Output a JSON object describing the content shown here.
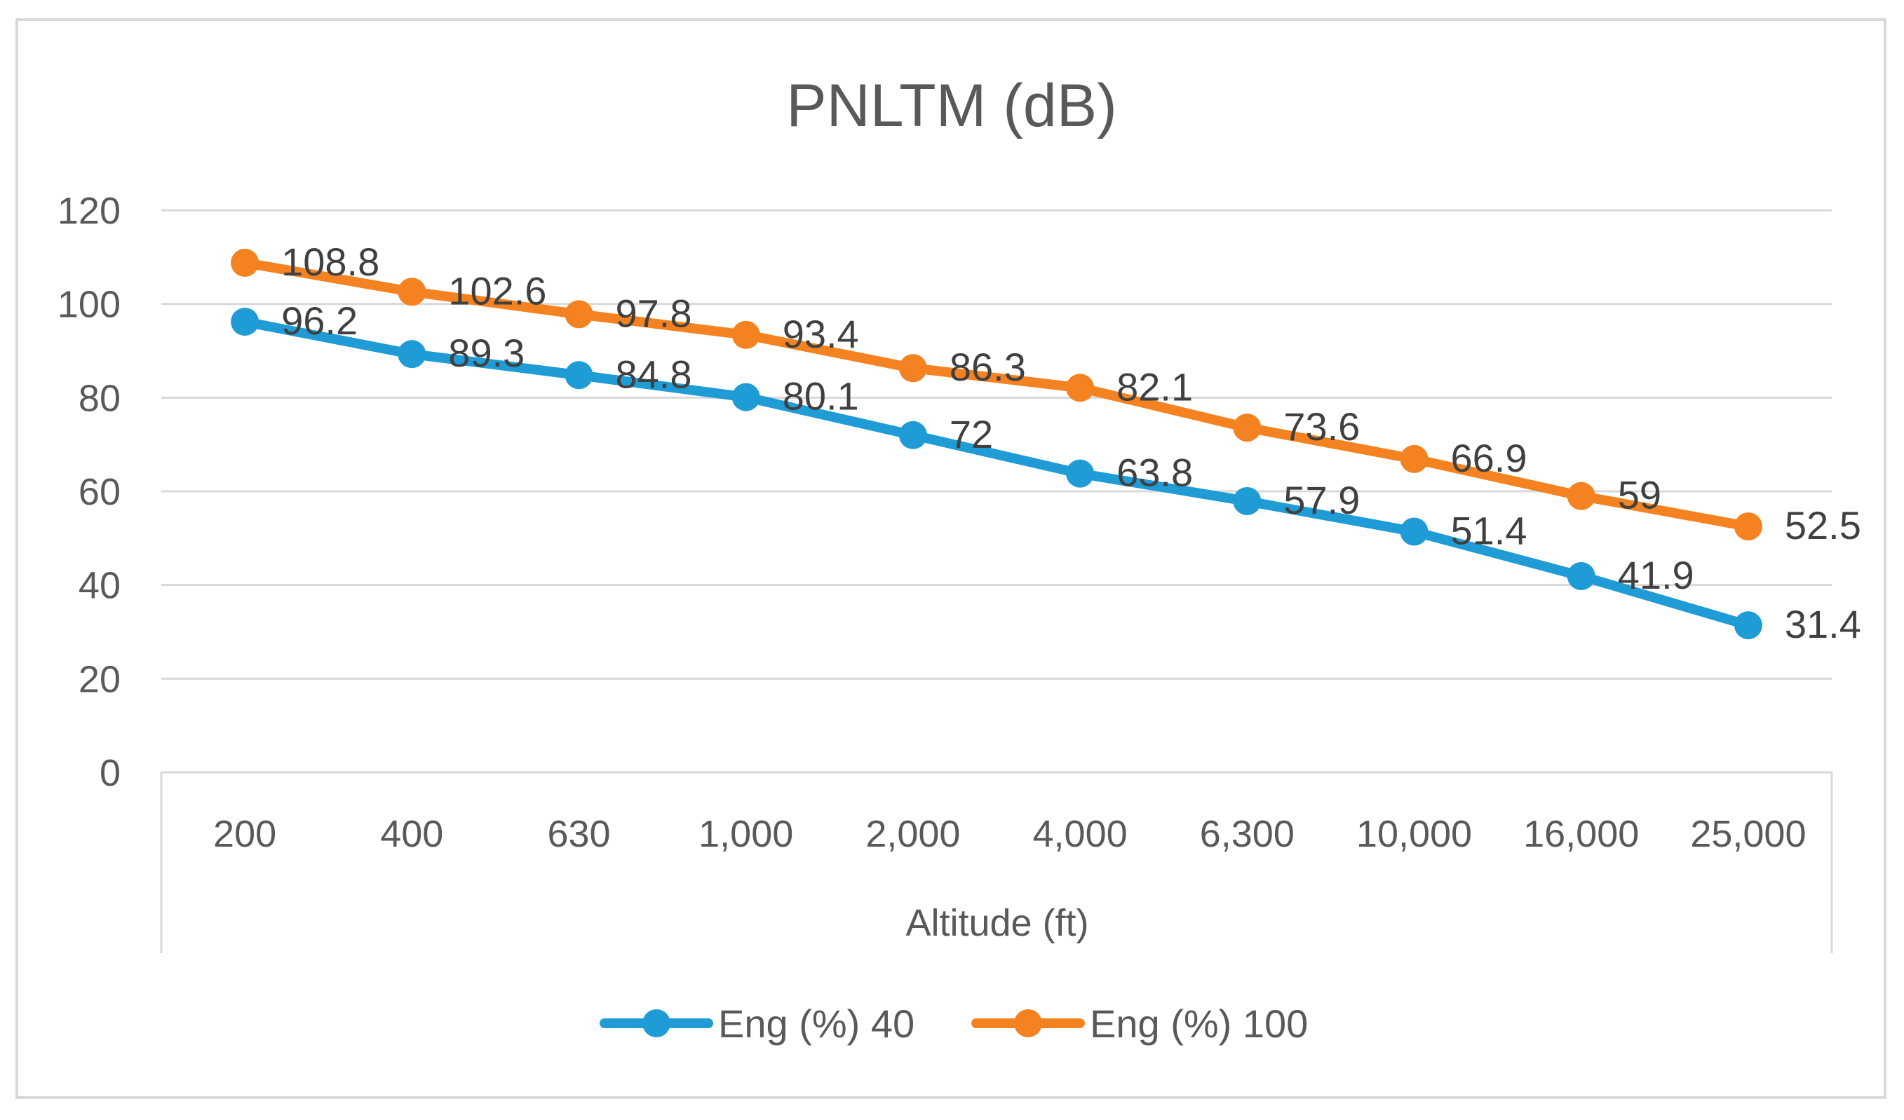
{
  "chart_data": {
    "type": "line",
    "title": "PNLTM (dB)",
    "xlabel": "Altitude (ft)",
    "ylabel": "",
    "categories": [
      "200",
      "400",
      "630",
      "1,000",
      "2,000",
      "4,000",
      "6,300",
      "10,000",
      "16,000",
      "25,000"
    ],
    "yticks": [
      "0",
      "20",
      "40",
      "60",
      "80",
      "100",
      "120"
    ],
    "ylim": [
      0,
      120
    ],
    "grid": true,
    "legend_position": "bottom",
    "series": [
      {
        "name": "Eng (%) 40",
        "color": "#1f9bd6",
        "values": [
          96.2,
          89.3,
          84.8,
          80.1,
          72,
          63.8,
          57.9,
          51.4,
          41.9,
          31.4
        ],
        "labels": [
          "96.2",
          "89.3",
          "84.8",
          "80.1",
          "72",
          "63.8",
          "57.9",
          "51.4",
          "41.9",
          "31.4"
        ]
      },
      {
        "name": "Eng (%) 100",
        "color": "#f58220",
        "values": [
          108.8,
          102.6,
          97.8,
          93.4,
          86.3,
          82.1,
          73.6,
          66.9,
          59,
          52.5
        ],
        "labels": [
          "108.8",
          "102.6",
          "97.8",
          "93.4",
          "86.3",
          "82.1",
          "73.6",
          "66.9",
          "59",
          "52.5"
        ]
      }
    ]
  }
}
